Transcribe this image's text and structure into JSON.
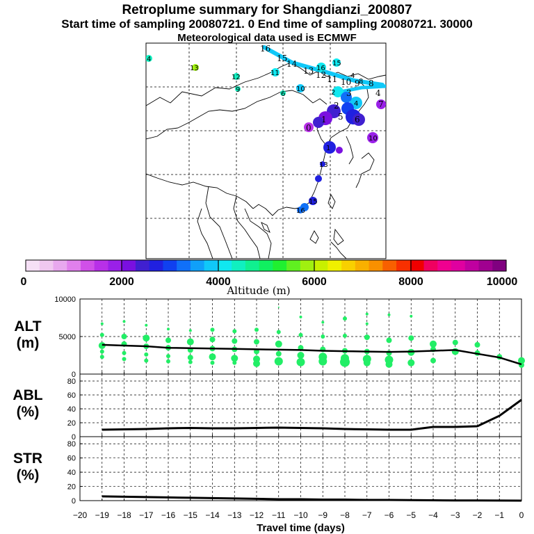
{
  "header": {
    "title": "Retroplume summary for Shangdianzi_200807",
    "sampling_line": "Start time of sampling 20080721.     0     End time of sampling 20080721. 30000",
    "met_line": "Meteorological data used is ECMWF"
  },
  "colors": {
    "plume_green": "#22ee66",
    "line": "#000000"
  },
  "colorbar": {
    "label": "Altitude  (m)",
    "tick_labels": [
      "0",
      "2000",
      "4000",
      "6000",
      "8000",
      "10000"
    ],
    "colors": [
      "#f6e0f6",
      "#f0c8f0",
      "#e8a8ee",
      "#e080ec",
      "#d050e8",
      "#b830e8",
      "#9a20e8",
      "#7a10e0",
      "#4020d0",
      "#2020e0",
      "#1040f0",
      "#1070f8",
      "#10a0f8",
      "#10c8f8",
      "#10e8f0",
      "#10f0c0",
      "#10f090",
      "#10f060",
      "#20f030",
      "#60f020",
      "#a0f010",
      "#c8f000",
      "#f0f000",
      "#f8d000",
      "#f8b000",
      "#f89000",
      "#f86000",
      "#f83000",
      "#f00000",
      "#f00060",
      "#f00090",
      "#e000a0",
      "#c000a0",
      "#a00090",
      "#800080"
    ]
  },
  "map": {
    "labels": [
      {
        "t": "16",
        "c": "#10e8f0"
      },
      {
        "t": "15",
        "c": "#10e8f0"
      },
      {
        "t": "14",
        "c": "#10e8f0"
      },
      {
        "t": "13",
        "c": "#10e8f0"
      },
      {
        "t": "12",
        "c": "#10e8f0"
      },
      {
        "t": "11",
        "c": "#1070f8"
      },
      {
        "t": "10",
        "c": "#1070f8"
      },
      {
        "t": "9",
        "c": "#1070f8"
      },
      {
        "t": "8",
        "c": "#10c8f8"
      },
      {
        "t": "4",
        "c": "#10c8f8"
      },
      {
        "t": "3",
        "c": "#1040f0"
      },
      {
        "t": "2",
        "c": "#4020d0"
      },
      {
        "t": "1",
        "c": "#4020d0"
      },
      {
        "t": "5",
        "c": "#2020e0"
      },
      {
        "t": "6",
        "c": "#2020e0"
      },
      {
        "t": "7",
        "c": "#9a20e8"
      },
      {
        "t": "0",
        "c": "#b830e8"
      },
      {
        "t": "10",
        "c": "#b830e8"
      },
      {
        "t": "4",
        "c": "#10f0c0"
      },
      {
        "t": "13",
        "c": "#a0f010"
      },
      {
        "t": "12",
        "c": "#10f090"
      },
      {
        "t": "11",
        "c": "#10f0c0"
      },
      {
        "t": "9",
        "c": "#10f0c0"
      },
      {
        "t": "6",
        "c": "#10f0c0"
      },
      {
        "t": "10",
        "c": "#10e8f0"
      },
      {
        "t": "16",
        "c": "#10e8f0"
      },
      {
        "t": "15",
        "c": "#10e8f0"
      },
      {
        "t": "2",
        "c": "#10e8f0"
      },
      {
        "t": "4",
        "c": "#10c8f8"
      },
      {
        "t": "1",
        "c": "#2020e0"
      },
      {
        "t": "13",
        "c": "#2020e0"
      },
      {
        "t": "15",
        "c": "#1040f0"
      },
      {
        "t": "16",
        "c": "#1070f8"
      },
      {
        "t": "4",
        "c": "#10c8f8"
      },
      {
        "t": "8",
        "c": "#10c8f8"
      }
    ]
  },
  "chart_data": [
    {
      "type": "scatter",
      "name": "ALT",
      "ylabel": "ALT\n(m)",
      "ylabel_lines": [
        "ALT",
        "(m)"
      ],
      "ylim": [
        0,
        10000
      ],
      "yticks": [
        "10000",
        "5000",
        "0"
      ],
      "xlim": [
        -20,
        0
      ],
      "mean_line": {
        "x": [
          -19,
          -18,
          -17,
          -16,
          -15,
          -14,
          -13,
          -12,
          -11,
          -10,
          -9,
          -8,
          -7,
          -6,
          -5,
          -4,
          -3,
          -2,
          -1,
          0
        ],
        "y": [
          3900,
          3800,
          3700,
          3500,
          3450,
          3400,
          3350,
          3300,
          3250,
          3200,
          3100,
          3050,
          3000,
          2950,
          3000,
          3100,
          3200,
          2700,
          2200,
          1300
        ]
      },
      "points": [
        {
          "x": -19,
          "y": 6700,
          "s": 2
        },
        {
          "x": -19,
          "y": 5200,
          "s": 3
        },
        {
          "x": -19,
          "y": 3800,
          "s": 5
        },
        {
          "x": -19,
          "y": 3000,
          "s": 3
        },
        {
          "x": -19,
          "y": 2300,
          "s": 3
        },
        {
          "x": -18,
          "y": 7000,
          "s": 2
        },
        {
          "x": -18,
          "y": 5000,
          "s": 4
        },
        {
          "x": -18,
          "y": 4000,
          "s": 4
        },
        {
          "x": -18,
          "y": 2800,
          "s": 3
        },
        {
          "x": -18,
          "y": 2000,
          "s": 3
        },
        {
          "x": -17,
          "y": 6500,
          "s": 2
        },
        {
          "x": -17,
          "y": 4800,
          "s": 5
        },
        {
          "x": -17,
          "y": 3700,
          "s": 4
        },
        {
          "x": -17,
          "y": 2600,
          "s": 3
        },
        {
          "x": -17,
          "y": 1800,
          "s": 3
        },
        {
          "x": -16,
          "y": 6000,
          "s": 2
        },
        {
          "x": -16,
          "y": 4500,
          "s": 4
        },
        {
          "x": -16,
          "y": 3500,
          "s": 4
        },
        {
          "x": -16,
          "y": 2400,
          "s": 3
        },
        {
          "x": -16,
          "y": 1700,
          "s": 3
        },
        {
          "x": -15,
          "y": 5800,
          "s": 2
        },
        {
          "x": -15,
          "y": 4300,
          "s": 5
        },
        {
          "x": -15,
          "y": 3200,
          "s": 4
        },
        {
          "x": -15,
          "y": 2200,
          "s": 4
        },
        {
          "x": -15,
          "y": 1600,
          "s": 3
        },
        {
          "x": -14,
          "y": 5900,
          "s": 3
        },
        {
          "x": -14,
          "y": 4600,
          "s": 4
        },
        {
          "x": -14,
          "y": 3400,
          "s": 4
        },
        {
          "x": -14,
          "y": 2300,
          "s": 5
        },
        {
          "x": -14,
          "y": 1500,
          "s": 3
        },
        {
          "x": -13,
          "y": 5700,
          "s": 3
        },
        {
          "x": -13,
          "y": 4400,
          "s": 4
        },
        {
          "x": -13,
          "y": 3300,
          "s": 4
        },
        {
          "x": -13,
          "y": 2100,
          "s": 5
        },
        {
          "x": -13,
          "y": 1500,
          "s": 3
        },
        {
          "x": -12,
          "y": 5900,
          "s": 3
        },
        {
          "x": -12,
          "y": 4300,
          "s": 4
        },
        {
          "x": -12,
          "y": 3000,
          "s": 4
        },
        {
          "x": -12,
          "y": 2000,
          "s": 5
        },
        {
          "x": -12,
          "y": 1400,
          "s": 5
        },
        {
          "x": -11,
          "y": 8900,
          "s": 1
        },
        {
          "x": -11,
          "y": 5600,
          "s": 3
        },
        {
          "x": -11,
          "y": 4000,
          "s": 5
        },
        {
          "x": -11,
          "y": 2700,
          "s": 4
        },
        {
          "x": -11,
          "y": 1700,
          "s": 6
        },
        {
          "x": -10,
          "y": 7600,
          "s": 2
        },
        {
          "x": -10,
          "y": 5200,
          "s": 3
        },
        {
          "x": -10,
          "y": 3500,
          "s": 4
        },
        {
          "x": -10,
          "y": 2500,
          "s": 5
        },
        {
          "x": -10,
          "y": 1600,
          "s": 6
        },
        {
          "x": -9,
          "y": 6900,
          "s": 2
        },
        {
          "x": -9,
          "y": 5000,
          "s": 3
        },
        {
          "x": -9,
          "y": 3300,
          "s": 4
        },
        {
          "x": -9,
          "y": 2300,
          "s": 6
        },
        {
          "x": -9,
          "y": 1700,
          "s": 6
        },
        {
          "x": -8,
          "y": 7400,
          "s": 3
        },
        {
          "x": -8,
          "y": 5100,
          "s": 3
        },
        {
          "x": -8,
          "y": 3100,
          "s": 4
        },
        {
          "x": -8,
          "y": 2100,
          "s": 6
        },
        {
          "x": -8,
          "y": 1600,
          "s": 7
        },
        {
          "x": -7,
          "y": 8000,
          "s": 2
        },
        {
          "x": -7,
          "y": 6700,
          "s": 2
        },
        {
          "x": -7,
          "y": 4900,
          "s": 4
        },
        {
          "x": -7,
          "y": 3000,
          "s": 4
        },
        {
          "x": -7,
          "y": 2000,
          "s": 6
        },
        {
          "x": -7,
          "y": 1500,
          "s": 5
        },
        {
          "x": -6,
          "y": 7900,
          "s": 2
        },
        {
          "x": -6,
          "y": 4500,
          "s": 4
        },
        {
          "x": -6,
          "y": 2800,
          "s": 4
        },
        {
          "x": -6,
          "y": 1900,
          "s": 6
        },
        {
          "x": -6,
          "y": 1300,
          "s": 5
        },
        {
          "x": -5,
          "y": 7700,
          "s": 2
        },
        {
          "x": -5,
          "y": 4800,
          "s": 4
        },
        {
          "x": -5,
          "y": 2900,
          "s": 5
        },
        {
          "x": -5,
          "y": 1500,
          "s": 5
        },
        {
          "x": -4,
          "y": 4000,
          "s": 5
        },
        {
          "x": -4,
          "y": 3300,
          "s": 4
        },
        {
          "x": -4,
          "y": 1800,
          "s": 4
        },
        {
          "x": -3,
          "y": 4200,
          "s": 4
        },
        {
          "x": -3,
          "y": 3000,
          "s": 5
        },
        {
          "x": -2,
          "y": 3900,
          "s": 4
        },
        {
          "x": -2,
          "y": 2800,
          "s": 4
        },
        {
          "x": -1,
          "y": 2300,
          "s": 4
        },
        {
          "x": 0,
          "y": 1800,
          "s": 5
        },
        {
          "x": 0,
          "y": 1200,
          "s": 4
        }
      ]
    },
    {
      "type": "line",
      "name": "ABL",
      "ylabel_lines": [
        "ABL",
        "(%)"
      ],
      "ylim": [
        0,
        90
      ],
      "yticks": [
        "80",
        "60",
        "40",
        "20",
        "0"
      ],
      "xlim": [
        -20,
        0
      ],
      "x": [
        -19,
        -18,
        -17,
        -16,
        -15,
        -14,
        -13,
        -12,
        -11,
        -10,
        -9,
        -8,
        -7,
        -6,
        -5,
        -4,
        -3,
        -2,
        -1,
        0
      ],
      "y": [
        10,
        10.5,
        11,
        12,
        12.5,
        12,
        12,
        12.5,
        13,
        12.5,
        12,
        11,
        10.5,
        10,
        10,
        14,
        14,
        15,
        30,
        53
      ]
    },
    {
      "type": "line",
      "name": "STR",
      "ylabel_lines": [
        "STR",
        "(%)"
      ],
      "ylim": [
        0,
        90
      ],
      "yticks": [
        "80",
        "60",
        "40",
        "20",
        "0"
      ],
      "xlim": [
        -20,
        0
      ],
      "x": [
        -19,
        -18,
        -17,
        -16,
        -15,
        -14,
        -13,
        -12,
        -11,
        -10,
        -9,
        -8,
        -7,
        -6,
        -5,
        -4,
        -3,
        -2,
        -1,
        0
      ],
      "y": [
        6,
        5.5,
        5,
        4.5,
        4,
        3.5,
        3,
        2.5,
        2,
        2,
        1.5,
        1.5,
        1,
        1,
        0.8,
        0.5,
        0.3,
        0.2,
        0.1,
        0
      ],
      "xlabel": "Travel time (days)",
      "xticks": [
        "−20",
        "−19",
        "−18",
        "−17",
        "−16",
        "−15",
        "−14",
        "−13",
        "−12",
        "−11",
        "−10",
        "−9",
        "−8",
        "−7",
        "−6",
        "−5",
        "−4",
        "−3",
        "−2",
        "−1",
        "0"
      ]
    }
  ]
}
